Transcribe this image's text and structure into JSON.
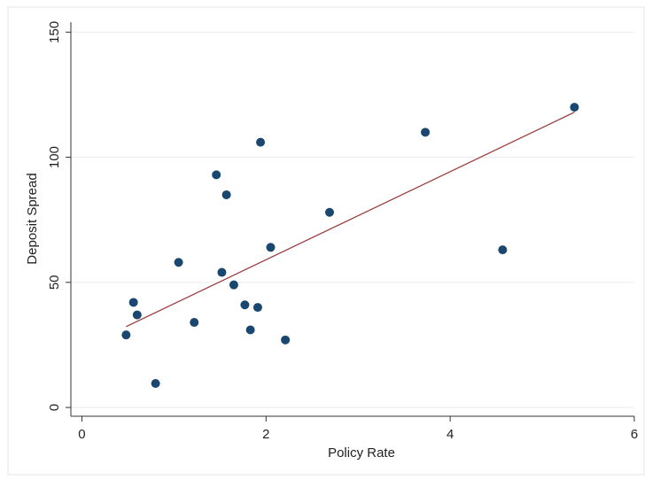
{
  "chart_data": {
    "type": "scatter",
    "x_label": "Policy Rate",
    "y_label": "Deposit Spread",
    "x": [
      0.48,
      0.56,
      0.6,
      0.8,
      1.05,
      1.22,
      1.46,
      1.52,
      1.57,
      1.65,
      1.77,
      1.83,
      1.91,
      1.94,
      2.05,
      2.21,
      2.69,
      3.73,
      4.57,
      5.35
    ],
    "values": [
      29,
      42,
      37,
      9.6,
      58,
      34,
      93,
      54,
      85,
      49,
      41,
      31,
      40,
      106,
      64,
      27,
      78,
      110,
      63,
      120
    ],
    "color": "#1a476f",
    "fit": {
      "x": [
        0.48,
        5.35
      ],
      "values": [
        32.3,
        118
      ],
      "color": "#9a3a3a"
    },
    "xlim": [
      -0.12,
      6
    ],
    "ylim": [
      -3.5,
      154
    ],
    "xticks": [
      0,
      2,
      4,
      6
    ],
    "yticks": [
      0,
      50,
      100,
      150
    ],
    "grid": true
  }
}
